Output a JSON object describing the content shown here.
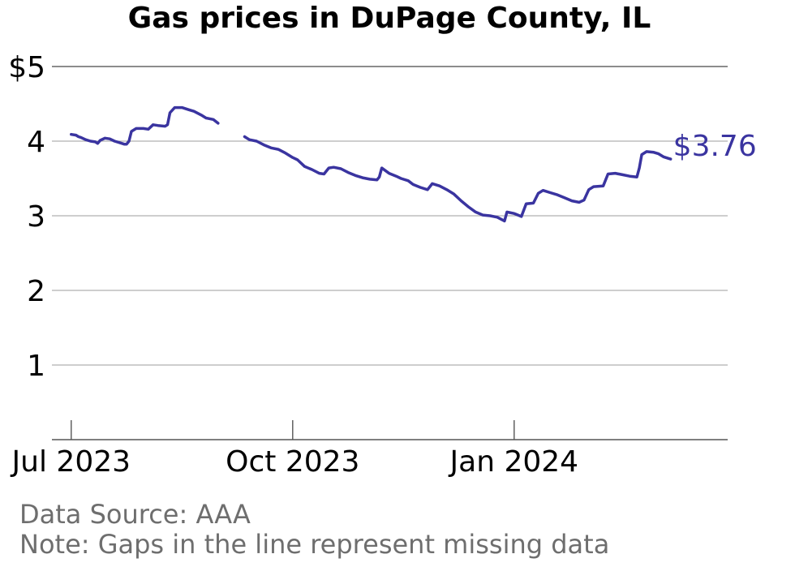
{
  "chart_data": {
    "type": "line",
    "title": "Gas prices in DuPage County, IL",
    "xlabel": "",
    "ylabel": "",
    "ylim": [
      0,
      5
    ],
    "y_ticks": [
      {
        "value": 5,
        "label": "$5"
      },
      {
        "value": 4,
        "label": "4"
      },
      {
        "value": 3,
        "label": "3"
      },
      {
        "value": 2,
        "label": "2"
      },
      {
        "value": 1,
        "label": "1"
      }
    ],
    "x_range": [
      "2023-06-25",
      "2024-03-27"
    ],
    "x_ticks": [
      {
        "date": "2023-07-01",
        "label": "Jul 2023"
      },
      {
        "date": "2023-10-01",
        "label": "Oct 2023"
      },
      {
        "date": "2024-01-01",
        "label": "Jan 2024"
      }
    ],
    "grid": true,
    "line_color": "#3a34a0",
    "end_label": "$3.76",
    "series": [
      {
        "segments": [
          [
            [
              "2023-07-01",
              4.09
            ],
            [
              "2023-07-03",
              4.08
            ],
            [
              "2023-07-04",
              4.06
            ],
            [
              "2023-07-05",
              4.05
            ],
            [
              "2023-07-07",
              4.02
            ],
            [
              "2023-07-09",
              4.0
            ],
            [
              "2023-07-11",
              3.99
            ],
            [
              "2023-07-12",
              3.97
            ],
            [
              "2023-07-13",
              4.01
            ],
            [
              "2023-07-15",
              4.04
            ],
            [
              "2023-07-17",
              4.03
            ],
            [
              "2023-07-19",
              4.0
            ],
            [
              "2023-07-21",
              3.98
            ],
            [
              "2023-07-23",
              3.96
            ],
            [
              "2023-07-24",
              3.96
            ],
            [
              "2023-07-25",
              4.0
            ],
            [
              "2023-07-26",
              4.13
            ],
            [
              "2023-07-28",
              4.17
            ],
            [
              "2023-07-31",
              4.17
            ],
            [
              "2023-08-02",
              4.16
            ],
            [
              "2023-08-04",
              4.22
            ],
            [
              "2023-08-06",
              4.21
            ],
            [
              "2023-08-09",
              4.2
            ],
            [
              "2023-08-10",
              4.22
            ],
            [
              "2023-08-11",
              4.38
            ],
            [
              "2023-08-13",
              4.45
            ],
            [
              "2023-08-16",
              4.45
            ],
            [
              "2023-08-19",
              4.42
            ],
            [
              "2023-08-21",
              4.4
            ],
            [
              "2023-08-24",
              4.35
            ],
            [
              "2023-08-26",
              4.31
            ],
            [
              "2023-08-29",
              4.29
            ],
            [
              "2023-08-31",
              4.24
            ]
          ],
          [
            [
              "2023-09-11",
              4.06
            ],
            [
              "2023-09-13",
              4.02
            ],
            [
              "2023-09-16",
              4.0
            ],
            [
              "2023-09-19",
              3.95
            ],
            [
              "2023-09-22",
              3.91
            ],
            [
              "2023-09-25",
              3.89
            ],
            [
              "2023-09-28",
              3.84
            ],
            [
              "2023-10-01",
              3.78
            ],
            [
              "2023-10-03",
              3.75
            ],
            [
              "2023-10-06",
              3.66
            ],
            [
              "2023-10-09",
              3.62
            ],
            [
              "2023-10-12",
              3.57
            ],
            [
              "2023-10-14",
              3.56
            ],
            [
              "2023-10-16",
              3.64
            ],
            [
              "2023-10-18",
              3.65
            ],
            [
              "2023-10-21",
              3.63
            ],
            [
              "2023-10-24",
              3.58
            ],
            [
              "2023-10-27",
              3.54
            ],
            [
              "2023-10-30",
              3.51
            ],
            [
              "2023-11-02",
              3.49
            ],
            [
              "2023-11-05",
              3.48
            ],
            [
              "2023-11-06",
              3.52
            ],
            [
              "2023-11-07",
              3.64
            ],
            [
              "2023-11-10",
              3.57
            ],
            [
              "2023-11-13",
              3.53
            ],
            [
              "2023-11-15",
              3.5
            ],
            [
              "2023-11-18",
              3.47
            ],
            [
              "2023-11-20",
              3.42
            ],
            [
              "2023-11-23",
              3.38
            ],
            [
              "2023-11-26",
              3.35
            ],
            [
              "2023-11-28",
              3.43
            ],
            [
              "2023-12-01",
              3.4
            ],
            [
              "2023-12-04",
              3.35
            ],
            [
              "2023-12-07",
              3.29
            ],
            [
              "2023-12-10",
              3.2
            ],
            [
              "2023-12-13",
              3.12
            ],
            [
              "2023-12-16",
              3.05
            ],
            [
              "2023-12-19",
              3.01
            ],
            [
              "2023-12-22",
              3.0
            ],
            [
              "2023-12-25",
              2.98
            ],
            [
              "2023-12-28",
              2.93
            ],
            [
              "2023-12-29",
              3.05
            ],
            [
              "2024-01-01",
              3.03
            ],
            [
              "2024-01-04",
              2.99
            ],
            [
              "2024-01-06",
              3.16
            ],
            [
              "2024-01-09",
              3.17
            ],
            [
              "2024-01-11",
              3.3
            ],
            [
              "2024-01-13",
              3.34
            ],
            [
              "2024-01-16",
              3.31
            ],
            [
              "2024-01-19",
              3.28
            ],
            [
              "2024-01-22",
              3.24
            ],
            [
              "2024-01-25",
              3.2
            ],
            [
              "2024-01-28",
              3.18
            ],
            [
              "2024-01-30",
              3.21
            ],
            [
              "2024-02-01",
              3.35
            ],
            [
              "2024-02-03",
              3.39
            ],
            [
              "2024-02-07",
              3.4
            ],
            [
              "2024-02-09",
              3.56
            ],
            [
              "2024-02-12",
              3.57
            ],
            [
              "2024-02-15",
              3.55
            ],
            [
              "2024-02-18",
              3.53
            ],
            [
              "2024-02-21",
              3.52
            ],
            [
              "2024-02-22",
              3.64
            ],
            [
              "2024-02-23",
              3.82
            ],
            [
              "2024-02-25",
              3.86
            ],
            [
              "2024-02-28",
              3.85
            ],
            [
              "2024-03-01",
              3.83
            ],
            [
              "2024-03-03",
              3.79
            ],
            [
              "2024-03-05",
              3.77
            ],
            [
              "2024-03-06",
              3.76
            ]
          ]
        ]
      }
    ]
  },
  "footer": {
    "source": "Data Source: AAA",
    "note": "Note: Gaps in the line represent missing data"
  }
}
